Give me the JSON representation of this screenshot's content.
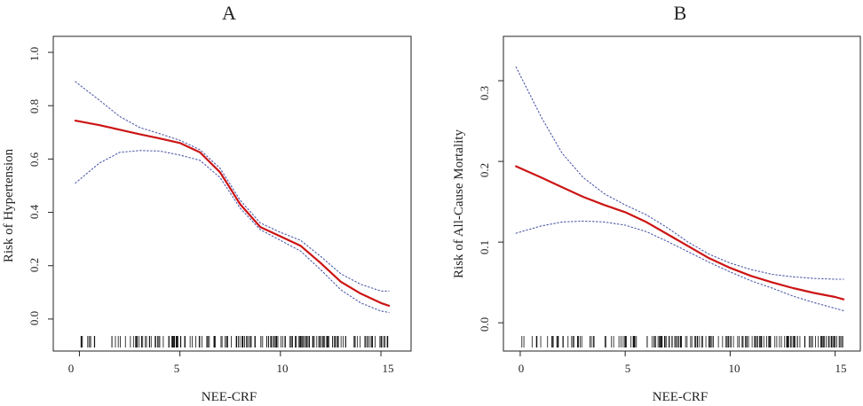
{
  "chart_data": [
    {
      "type": "line",
      "title": "A",
      "xlabel": "NEE-CRF",
      "ylabel": "Risk of Hypertension",
      "xlim": [
        -1.3,
        16.5
      ],
      "ylim": [
        -0.12,
        1.06
      ],
      "x_ticks": [
        "0",
        "5",
        "10",
        "15"
      ],
      "y_ticks": [
        "0.0",
        "0.2",
        "0.4",
        "0.6",
        "0.8",
        "1.0"
      ],
      "grid": false,
      "series": [
        {
          "role": "estimate",
          "color": "#cc1414",
          "style": "solid",
          "x": [
            -0.2,
            1,
            2,
            3,
            4,
            5,
            6,
            7,
            8,
            9,
            10,
            11,
            12,
            13,
            14,
            15,
            15.4
          ],
          "y": [
            0.744,
            0.727,
            0.71,
            0.693,
            0.677,
            0.66,
            0.625,
            0.55,
            0.43,
            0.345,
            0.31,
            0.275,
            0.21,
            0.14,
            0.095,
            0.06,
            0.05
          ]
        },
        {
          "role": "upper",
          "color": "#4d5aa8",
          "style": "dotted",
          "x": [
            -0.2,
            1,
            2,
            3,
            4,
            5,
            6,
            7,
            8,
            9,
            10,
            11,
            12,
            13,
            14,
            15,
            15.4
          ],
          "y": [
            0.89,
            0.82,
            0.76,
            0.718,
            0.695,
            0.67,
            0.635,
            0.565,
            0.445,
            0.36,
            0.325,
            0.295,
            0.235,
            0.17,
            0.13,
            0.105,
            0.105
          ]
        },
        {
          "role": "lower",
          "color": "#4d5aa8",
          "style": "dotted",
          "x": [
            -0.2,
            1,
            2,
            3,
            4,
            5,
            6,
            7,
            8,
            9,
            10,
            11,
            12,
            13,
            14,
            15,
            15.4
          ],
          "y": [
            0.51,
            0.585,
            0.625,
            0.632,
            0.63,
            0.615,
            0.595,
            0.53,
            0.415,
            0.335,
            0.295,
            0.255,
            0.185,
            0.11,
            0.06,
            0.03,
            0.025
          ]
        }
      ]
    },
    {
      "type": "line",
      "title": "B",
      "xlabel": "NEE-CRF",
      "ylabel": "Risk of All-Cause Mortality",
      "xlim": [
        -0.8,
        16.2
      ],
      "ylim": [
        -0.035,
        0.355
      ],
      "x_ticks": [
        "0",
        "5",
        "10",
        "15"
      ],
      "y_ticks": [
        "0.0",
        "0.1",
        "0.2",
        "0.3"
      ],
      "grid": false,
      "series": [
        {
          "role": "estimate",
          "color": "#cc1414",
          "style": "solid",
          "x": [
            -0.2,
            1,
            2,
            3,
            4,
            5,
            6,
            7,
            8,
            9,
            10,
            11,
            12,
            13,
            14,
            15,
            15.4
          ],
          "y": [
            0.194,
            0.18,
            0.168,
            0.156,
            0.146,
            0.137,
            0.125,
            0.11,
            0.095,
            0.08,
            0.068,
            0.058,
            0.05,
            0.043,
            0.037,
            0.032,
            0.029
          ]
        },
        {
          "role": "upper",
          "color": "#4d5aa8",
          "style": "dotted",
          "x": [
            -0.2,
            1,
            2,
            3,
            4,
            5,
            6,
            7,
            8,
            9,
            10,
            11,
            12,
            13,
            14,
            15,
            15.4
          ],
          "y": [
            0.317,
            0.255,
            0.21,
            0.18,
            0.16,
            0.146,
            0.134,
            0.118,
            0.1,
            0.085,
            0.074,
            0.066,
            0.06,
            0.057,
            0.055,
            0.054,
            0.054
          ]
        },
        {
          "role": "lower",
          "color": "#4d5aa8",
          "style": "dotted",
          "x": [
            -0.2,
            1,
            2,
            3,
            4,
            5,
            6,
            7,
            8,
            9,
            10,
            11,
            12,
            13,
            14,
            15,
            15.4
          ],
          "y": [
            0.111,
            0.12,
            0.125,
            0.126,
            0.125,
            0.121,
            0.113,
            0.101,
            0.088,
            0.075,
            0.063,
            0.052,
            0.043,
            0.033,
            0.025,
            0.018,
            0.015
          ]
        }
      ]
    }
  ]
}
